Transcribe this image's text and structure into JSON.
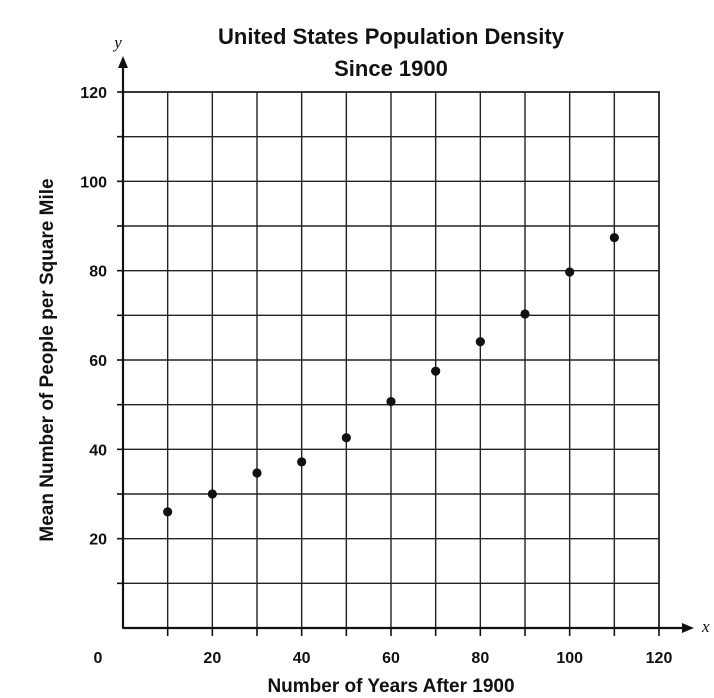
{
  "chart_data": {
    "type": "scatter",
    "title_lines": [
      "United States Population Density",
      "Since 1900"
    ],
    "xlabel": "Number of Years After 1900",
    "ylabel": "Mean Number of People per Square Mile",
    "x_var": "x",
    "y_var": "y",
    "xlim": [
      0,
      120
    ],
    "ylim": [
      0,
      120
    ],
    "grid": true,
    "x_tick_labels": [
      "0",
      "20",
      "40",
      "60",
      "80",
      "100",
      "120"
    ],
    "y_tick_labels": [
      "20",
      "40",
      "60",
      "80",
      "100",
      "120"
    ],
    "points": [
      {
        "x": 10,
        "y": 26
      },
      {
        "x": 20,
        "y": 30
      },
      {
        "x": 30,
        "y": 34.7
      },
      {
        "x": 40,
        "y": 37.2
      },
      {
        "x": 50,
        "y": 42.6
      },
      {
        "x": 60,
        "y": 50.7
      },
      {
        "x": 70,
        "y": 57.5
      },
      {
        "x": 80,
        "y": 64.1
      },
      {
        "x": 90,
        "y": 70.3
      },
      {
        "x": 100,
        "y": 79.7
      },
      {
        "x": 110,
        "y": 87.4
      }
    ],
    "colors": {
      "ink": "#111111",
      "grid": "#222222",
      "background": "#ffffff"
    }
  }
}
